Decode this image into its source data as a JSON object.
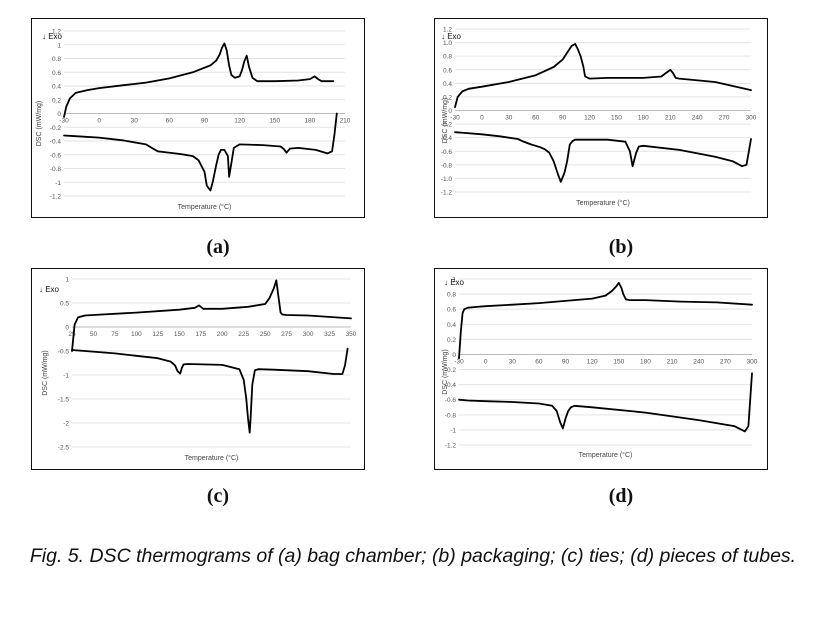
{
  "figure": {
    "caption": "Fig. 5. DSC thermograms of (a) bag chamber; (b) packaging; (c) ties; (d) pieces of tubes.",
    "sublabels": {
      "a": "(a)",
      "b": "(b)",
      "c": "(c)",
      "d": "(d)"
    }
  },
  "chart_data": [
    {
      "id": "a",
      "type": "line",
      "annotation": "↓ Exo",
      "xlabel": "Temperature (°C)",
      "ylabel": "DSC (mW/mg)",
      "xlim": [
        -30,
        210
      ],
      "ylim": [
        -1.2,
        1.2
      ],
      "x_ticks": [
        -30,
        0,
        30,
        60,
        90,
        120,
        150,
        180,
        210
      ],
      "y_ticks": [
        1.2,
        1,
        0.8,
        0.6,
        0.4,
        0.2,
        0,
        -0.2,
        -0.4,
        -0.6,
        -0.8,
        -1,
        -1.2
      ],
      "x_tick_labels": [
        "-30",
        "0",
        "30",
        "60",
        "90",
        "120",
        "150",
        "180",
        "210"
      ],
      "y_tick_labels": [
        "1.2",
        "1",
        "0.8",
        "0.6",
        "0.4",
        "0.2",
        "0",
        "-0.2",
        "-0.4",
        "-0.6",
        "-0.8",
        "-1",
        "-1.2"
      ],
      "grid": true,
      "series": [
        {
          "x": [
            -30,
            -28,
            -25,
            -20,
            -10,
            0,
            20,
            40,
            60,
            80,
            95,
            100,
            103,
            105,
            107,
            109,
            111,
            113,
            116,
            120,
            122,
            124,
            126,
            128,
            131,
            135,
            150,
            170,
            180,
            184,
            187,
            190,
            200
          ],
          "y": [
            -0.05,
            0.1,
            0.22,
            0.3,
            0.34,
            0.37,
            0.41,
            0.45,
            0.51,
            0.6,
            0.7,
            0.77,
            0.86,
            0.96,
            1.02,
            0.92,
            0.7,
            0.56,
            0.52,
            0.54,
            0.63,
            0.76,
            0.84,
            0.68,
            0.52,
            0.47,
            0.47,
            0.48,
            0.5,
            0.54,
            0.5,
            0.47,
            0.47
          ]
        },
        {
          "x": [
            -30,
            -20,
            0,
            20,
            40,
            45,
            50,
            55,
            70,
            80,
            85,
            90,
            92,
            95,
            97,
            100,
            102,
            104,
            107,
            110,
            111,
            113,
            115,
            120,
            140,
            155,
            158,
            160,
            163,
            170,
            185,
            195,
            199,
            201,
            203
          ],
          "y": [
            -0.32,
            -0.33,
            -0.35,
            -0.39,
            -0.45,
            -0.5,
            -0.55,
            -0.56,
            -0.59,
            -0.62,
            -0.68,
            -0.85,
            -1.05,
            -1.12,
            -1.0,
            -0.75,
            -0.6,
            -0.53,
            -0.53,
            -0.62,
            -0.92,
            -0.72,
            -0.5,
            -0.45,
            -0.46,
            -0.48,
            -0.52,
            -0.57,
            -0.51,
            -0.5,
            -0.53,
            -0.58,
            -0.55,
            -0.3,
            0.0
          ]
        }
      ]
    },
    {
      "id": "b",
      "type": "line",
      "annotation": "↓ Exo",
      "xlabel": "Temperature (°C)",
      "ylabel": "DSC (mW/mg)",
      "xlim": [
        -30,
        300
      ],
      "ylim": [
        -1.2,
        1.2
      ],
      "x_ticks": [
        -30,
        0,
        30,
        60,
        90,
        120,
        150,
        180,
        210,
        240,
        270,
        300
      ],
      "y_ticks": [
        1.2,
        1,
        0.8,
        0.6,
        0.4,
        0.2,
        0,
        -0.2,
        -0.4,
        -0.6,
        -0.8,
        -1,
        -1.2
      ],
      "x_tick_labels": [
        "-30",
        "0",
        "30",
        "60",
        "90",
        "120",
        "150",
        "180",
        "210",
        "240",
        "270",
        "300"
      ],
      "y_tick_labels": [
        "1.2",
        "1.0",
        "0.8",
        "0.6",
        "0.4",
        "0.2",
        "0",
        "-0.2",
        "-0.4",
        "-0.6",
        "-0.8",
        "-1.0",
        "-1.2"
      ],
      "grid": true,
      "series": [
        {
          "x": [
            -30,
            -27,
            -22,
            -15,
            0,
            30,
            60,
            80,
            90,
            95,
            100,
            104,
            107,
            110,
            113,
            115,
            120,
            140,
            180,
            200,
            205,
            210,
            213,
            216,
            220,
            260,
            300
          ],
          "y": [
            0.05,
            0.2,
            0.28,
            0.32,
            0.35,
            0.42,
            0.52,
            0.64,
            0.75,
            0.85,
            0.95,
            0.98,
            0.9,
            0.8,
            0.65,
            0.5,
            0.47,
            0.48,
            0.48,
            0.5,
            0.55,
            0.6,
            0.55,
            0.48,
            0.47,
            0.42,
            0.3
          ]
        },
        {
          "x": [
            -30,
            -20,
            0,
            20,
            40,
            45,
            55,
            65,
            70,
            75,
            80,
            85,
            88,
            92,
            95,
            98,
            101,
            104,
            140,
            160,
            165,
            168,
            172,
            175,
            180,
            220,
            260,
            280,
            290,
            295,
            300
          ],
          "y": [
            -0.32,
            -0.33,
            -0.35,
            -0.38,
            -0.42,
            -0.45,
            -0.5,
            -0.54,
            -0.57,
            -0.62,
            -0.75,
            -0.95,
            -1.05,
            -0.92,
            -0.75,
            -0.5,
            -0.45,
            -0.43,
            -0.43,
            -0.46,
            -0.6,
            -0.82,
            -0.62,
            -0.53,
            -0.52,
            -0.58,
            -0.68,
            -0.75,
            -0.82,
            -0.8,
            -0.42
          ]
        }
      ]
    },
    {
      "id": "c",
      "type": "line",
      "annotation": "↓ Exo",
      "xlabel": "Temperature (°C)",
      "ylabel": "DSC (mW/mg)",
      "xlim": [
        25,
        350
      ],
      "ylim": [
        -2.5,
        1
      ],
      "x_ticks": [
        25,
        50,
        75,
        100,
        125,
        150,
        175,
        200,
        225,
        250,
        275,
        300,
        325,
        350
      ],
      "y_ticks": [
        1,
        0.5,
        0,
        -0.5,
        -1,
        -1.5,
        -2,
        -2.5
      ],
      "x_tick_labels": [
        "25",
        "50",
        "75",
        "100",
        "125",
        "150",
        "175",
        "200",
        "225",
        "250",
        "275",
        "300",
        "325",
        "350"
      ],
      "y_tick_labels": [
        "1",
        "0.5",
        "0",
        "-0.5",
        "-1",
        "-1.5",
        "-2",
        "-2.5"
      ],
      "grid": true,
      "series": [
        {
          "x": [
            25,
            28,
            32,
            40,
            60,
            100,
            150,
            168,
            173,
            178,
            200,
            230,
            250,
            255,
            260,
            263,
            265,
            268,
            270,
            275,
            300,
            350
          ],
          "y": [
            -0.5,
            0.05,
            0.2,
            0.24,
            0.26,
            0.3,
            0.36,
            0.4,
            0.45,
            0.38,
            0.38,
            0.42,
            0.48,
            0.6,
            0.8,
            0.97,
            0.7,
            0.3,
            0.26,
            0.25,
            0.24,
            0.18
          ]
        },
        {
          "x": [
            25,
            40,
            75,
            100,
            125,
            140,
            145,
            148,
            151,
            153,
            155,
            160,
            200,
            220,
            225,
            228,
            230,
            232,
            233,
            235,
            238,
            242,
            260,
            300,
            330,
            340,
            343,
            346
          ],
          "y": [
            -0.48,
            -0.5,
            -0.55,
            -0.6,
            -0.65,
            -0.72,
            -0.8,
            -0.92,
            -0.97,
            -0.85,
            -0.78,
            -0.77,
            -0.79,
            -0.88,
            -1.1,
            -1.5,
            -1.9,
            -2.2,
            -1.9,
            -1.2,
            -0.9,
            -0.88,
            -0.89,
            -0.92,
            -0.98,
            -0.98,
            -0.8,
            -0.45
          ]
        }
      ]
    },
    {
      "id": "d",
      "type": "line",
      "annotation": "↓ Exo",
      "xlabel": "Temperature (°C)",
      "ylabel": "DSC (mW/mg)",
      "xlim": [
        -30,
        300
      ],
      "ylim": [
        -1.2,
        1
      ],
      "x_ticks": [
        -30,
        0,
        30,
        60,
        90,
        120,
        150,
        180,
        210,
        240,
        270,
        300
      ],
      "y_ticks": [
        1,
        0.8,
        0.6,
        0.4,
        0.2,
        0,
        -0.2,
        -0.4,
        -0.6,
        -0.8,
        -1,
        -1.2
      ],
      "x_tick_labels": [
        "-30",
        "0",
        "30",
        "60",
        "90",
        "120",
        "150",
        "180",
        "210",
        "240",
        "270",
        "300"
      ],
      "y_tick_labels": [
        "1",
        "0.8",
        "0.6",
        "0.4",
        "0.2",
        "0",
        "-0.2",
        "-0.4",
        "-0.6",
        "-0.8",
        "-1",
        "-1.2"
      ],
      "grid": true,
      "series": [
        {
          "x": [
            -30,
            -28,
            -26,
            -24,
            -20,
            -10,
            0,
            30,
            60,
            90,
            120,
            135,
            142,
            147,
            150,
            153,
            155,
            158,
            162,
            180,
            220,
            260,
            300
          ],
          "y": [
            -0.05,
            0.3,
            0.55,
            0.6,
            0.62,
            0.63,
            0.64,
            0.66,
            0.68,
            0.71,
            0.74,
            0.78,
            0.84,
            0.9,
            0.95,
            0.88,
            0.8,
            0.73,
            0.72,
            0.72,
            0.7,
            0.69,
            0.66
          ]
        },
        {
          "x": [
            -30,
            -20,
            0,
            30,
            60,
            75,
            80,
            84,
            87,
            90,
            93,
            96,
            100,
            120,
            180,
            240,
            280,
            292,
            296,
            298,
            300
          ],
          "y": [
            -0.6,
            -0.61,
            -0.62,
            -0.63,
            -0.65,
            -0.68,
            -0.75,
            -0.9,
            -0.98,
            -0.85,
            -0.75,
            -0.7,
            -0.68,
            -0.7,
            -0.77,
            -0.87,
            -0.95,
            -1.02,
            -0.95,
            -0.6,
            -0.25
          ]
        }
      ]
    }
  ]
}
